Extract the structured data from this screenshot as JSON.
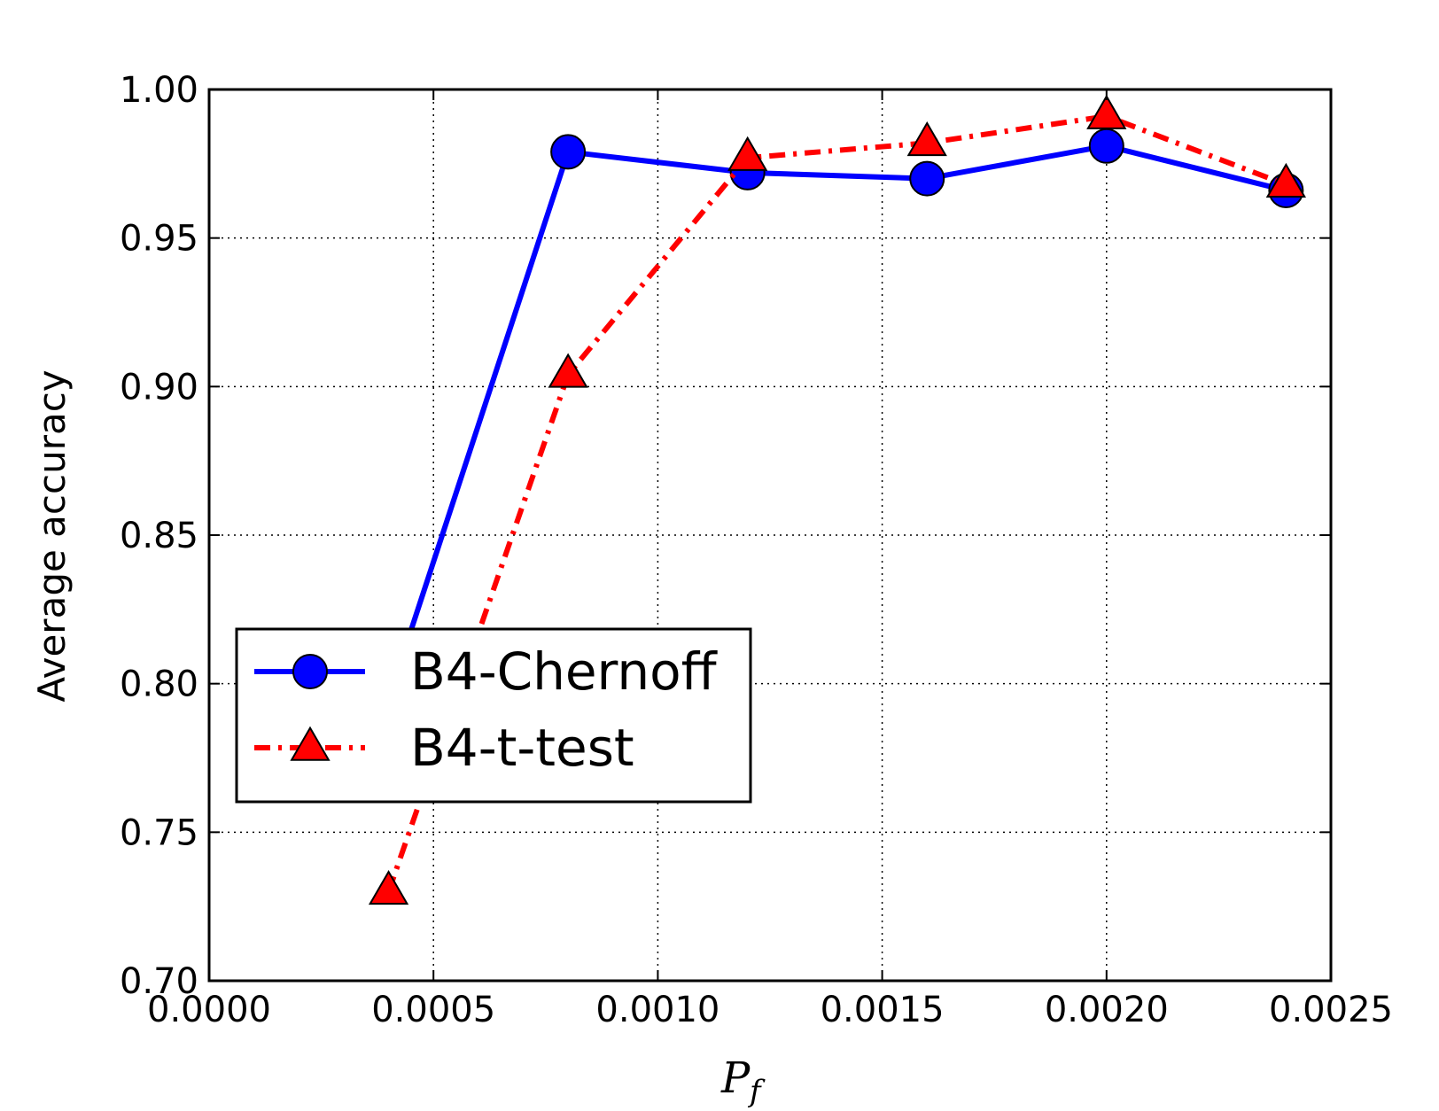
{
  "chart_data": {
    "type": "line",
    "xlabel": {
      "main": "P",
      "sub": "f"
    },
    "ylabel": "Average accuracy",
    "xlim": [
      0.0,
      0.0025
    ],
    "ylim": [
      0.7,
      1.0
    ],
    "xticks": [
      0.0,
      0.0005,
      0.001,
      0.0015,
      0.002,
      0.0025
    ],
    "xtick_labels": [
      "0.0000",
      "0.0005",
      "0.0010",
      "0.0015",
      "0.0020",
      "0.0025"
    ],
    "yticks": [
      0.7,
      0.75,
      0.8,
      0.85,
      0.9,
      0.95,
      1.0
    ],
    "ytick_labels": [
      "0.70",
      "0.75",
      "0.80",
      "0.85",
      "0.90",
      "0.95",
      "1.00"
    ],
    "grid": true,
    "legend_position": "lower-left",
    "series": [
      {
        "name": "B4-Chernoff",
        "color": "#0000ff",
        "marker": "circle",
        "line_style": "solid",
        "x": [
          0.0004,
          0.0008,
          0.0012,
          0.0016,
          0.002,
          0.0024
        ],
        "y": [
          0.795,
          0.979,
          0.972,
          0.97,
          0.981,
          0.966
        ]
      },
      {
        "name": "B4-t-test",
        "color": "#ff0000",
        "marker": "triangle",
        "line_style": "dashdot",
        "x": [
          0.0004,
          0.0008,
          0.0012,
          0.0016,
          0.002,
          0.0024
        ],
        "y": [
          0.73,
          0.904,
          0.977,
          0.982,
          0.991,
          0.968
        ]
      }
    ]
  }
}
